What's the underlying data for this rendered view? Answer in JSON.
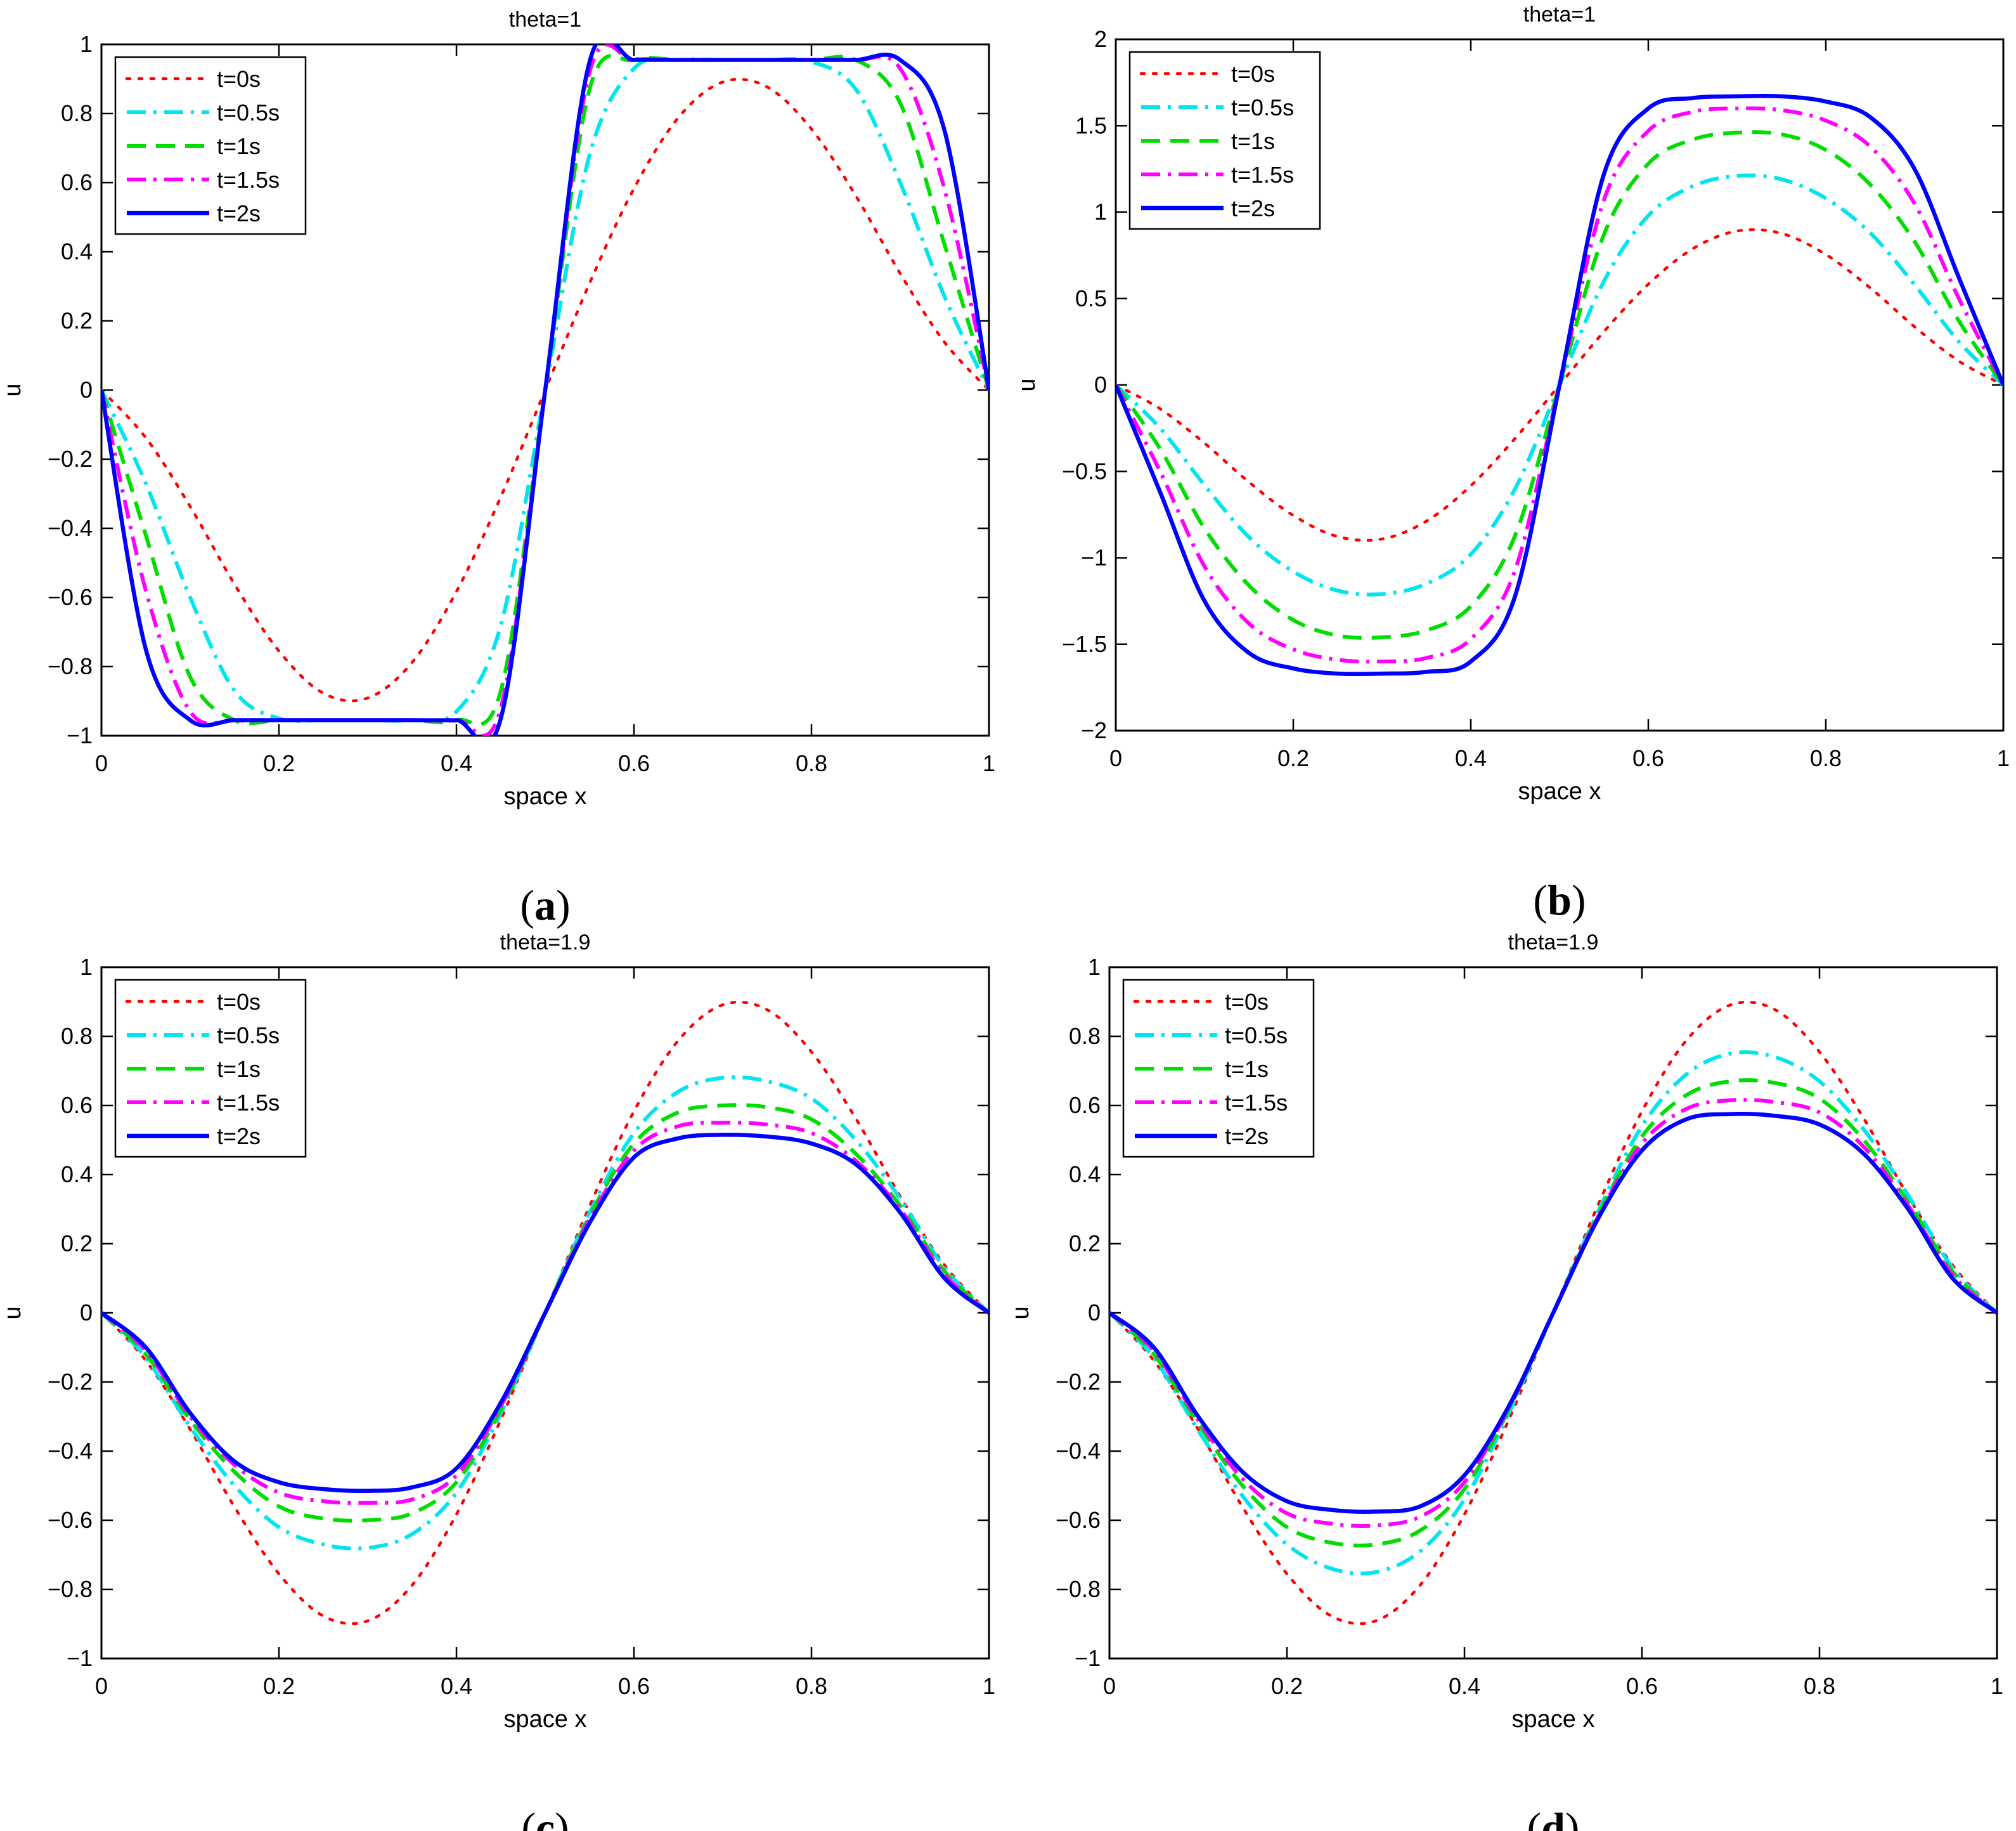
{
  "figure": {
    "panels": [
      "a",
      "b",
      "c",
      "d"
    ],
    "captions": [
      "(a)",
      "(b)",
      "(c)",
      "(d)"
    ]
  },
  "legend_entries": [
    {
      "label": "t=0s",
      "color": "#ff0000",
      "dash": "dotted"
    },
    {
      "label": "t=0.5s",
      "color": "#00e5ee",
      "dash": "dashdot"
    },
    {
      "label": "t=1s",
      "color": "#00dd00",
      "dash": "dashed"
    },
    {
      "label": "t=1.5s",
      "color": "#ff00ff",
      "dash": "dashdot"
    },
    {
      "label": "t=2s",
      "color": "#0000ff",
      "dash": "solid"
    }
  ],
  "chart_data": [
    {
      "type": "line",
      "panel": "a",
      "caption_letter": "a",
      "title": "theta=1",
      "xlabel": "space x",
      "ylabel": "u",
      "xlim": [
        0,
        1
      ],
      "ylim": [
        -1,
        1
      ],
      "xticks": [
        0,
        0.2,
        0.4,
        0.6,
        0.8,
        1
      ],
      "xtick_labels": [
        "0",
        "0.2",
        "0.4",
        "0.6",
        "0.8",
        "1"
      ],
      "yticks": [
        -1,
        -0.8,
        -0.6,
        -0.4,
        -0.2,
        0,
        0.2,
        0.4,
        0.6,
        0.8,
        1
      ],
      "ytick_labels": [
        "−1",
        "−0.8",
        "−0.6",
        "−0.4",
        "−0.2",
        "0",
        "0.2",
        "0.4",
        "0.6",
        "0.8",
        "1"
      ],
      "legend_position": "top-left",
      "x": [
        0,
        0.05,
        0.1,
        0.15,
        0.2,
        0.25,
        0.3,
        0.35,
        0.4,
        0.45,
        0.5,
        0.55,
        0.6,
        0.65,
        0.7,
        0.75,
        0.8,
        0.85,
        0.9,
        0.95,
        1
      ],
      "series": [
        {
          "name": "t=0s",
          "values": [
            0,
            -0.138,
            -0.337,
            -0.562,
            -0.755,
            -0.877,
            -0.891,
            -0.788,
            -0.583,
            -0.309,
            0,
            0.309,
            0.583,
            0.788,
            0.891,
            0.877,
            0.755,
            0.562,
            0.337,
            0.138,
            0
          ]
        },
        {
          "name": "t=0.5s",
          "values": [
            0,
            -0.27,
            -0.6,
            -0.87,
            -0.95,
            -0.955,
            -0.955,
            -0.955,
            -0.93,
            -0.68,
            0,
            0.68,
            0.93,
            0.955,
            0.955,
            0.955,
            0.95,
            0.87,
            0.6,
            0.27,
            0
          ]
        },
        {
          "name": "t=1s",
          "values": [
            0,
            -0.42,
            -0.83,
            -0.955,
            -0.955,
            -0.955,
            -0.955,
            -0.955,
            -0.955,
            -0.87,
            0,
            0.87,
            0.955,
            0.955,
            0.955,
            0.955,
            0.955,
            0.955,
            0.83,
            0.42,
            0
          ]
        },
        {
          "name": "t=1.5s",
          "values": [
            0,
            -0.58,
            -0.93,
            -0.955,
            -0.955,
            -0.955,
            -0.955,
            -0.955,
            -0.955,
            -0.92,
            0,
            0.92,
            0.955,
            0.955,
            0.955,
            0.955,
            0.955,
            0.955,
            0.93,
            0.58,
            0
          ]
        },
        {
          "name": "t=2s",
          "values": [
            0,
            -0.75,
            -0.955,
            -0.955,
            -0.955,
            -0.955,
            -0.955,
            -0.955,
            -0.955,
            -0.95,
            0,
            0.95,
            0.955,
            0.955,
            0.955,
            0.955,
            0.955,
            0.955,
            0.955,
            0.75,
            0
          ]
        }
      ]
    },
    {
      "type": "line",
      "panel": "b",
      "caption_letter": "b",
      "title": "theta=1",
      "xlabel": "space x",
      "ylabel": "u",
      "xlim": [
        0,
        1
      ],
      "ylim": [
        -2,
        2
      ],
      "xticks": [
        0,
        0.2,
        0.4,
        0.6,
        0.8,
        1
      ],
      "xtick_labels": [
        "0",
        "0.2",
        "0.4",
        "0.6",
        "0.8",
        "1"
      ],
      "yticks": [
        -2,
        -1.5,
        -1,
        -0.5,
        0,
        0.5,
        1,
        1.5,
        2
      ],
      "ytick_labels": [
        "−2",
        "−1.5",
        "−1",
        "−0.5",
        "0",
        "0.5",
        "1",
        "1.5",
        "2"
      ],
      "legend_position": "top-left",
      "x": [
        0,
        0.05,
        0.1,
        0.15,
        0.2,
        0.25,
        0.3,
        0.35,
        0.4,
        0.45,
        0.5,
        0.55,
        0.6,
        0.65,
        0.7,
        0.75,
        0.8,
        0.85,
        0.9,
        0.95,
        1
      ],
      "series": [
        {
          "name": "t=0s",
          "values": [
            0,
            -0.138,
            -0.337,
            -0.562,
            -0.755,
            -0.877,
            -0.891,
            -0.788,
            -0.583,
            -0.309,
            0,
            0.309,
            0.583,
            0.788,
            0.891,
            0.877,
            0.755,
            0.562,
            0.337,
            0.138,
            0
          ]
        },
        {
          "name": "t=0.5s",
          "values": [
            0,
            -0.25,
            -0.58,
            -0.88,
            -1.08,
            -1.19,
            -1.21,
            -1.15,
            -0.98,
            -0.6,
            0,
            0.6,
            0.98,
            1.15,
            1.21,
            1.19,
            1.08,
            0.88,
            0.58,
            0.25,
            0
          ]
        },
        {
          "name": "t=1s",
          "values": [
            0,
            -0.37,
            -0.83,
            -1.16,
            -1.36,
            -1.45,
            -1.46,
            -1.42,
            -1.28,
            -0.87,
            0,
            0.87,
            1.28,
            1.42,
            1.46,
            1.45,
            1.36,
            1.16,
            0.83,
            0.37,
            0
          ]
        },
        {
          "name": "t=1.5s",
          "values": [
            0,
            -0.5,
            -1.05,
            -1.38,
            -1.53,
            -1.59,
            -1.6,
            -1.58,
            -1.47,
            -1.07,
            0,
            1.07,
            1.47,
            1.58,
            1.6,
            1.59,
            1.53,
            1.38,
            1.05,
            0.5,
            0
          ]
        },
        {
          "name": "t=2s",
          "values": [
            0,
            -0.62,
            -1.25,
            -1.55,
            -1.64,
            -1.67,
            -1.67,
            -1.66,
            -1.6,
            -1.22,
            0,
            1.22,
            1.6,
            1.66,
            1.67,
            1.67,
            1.64,
            1.55,
            1.25,
            0.62,
            0
          ]
        }
      ]
    },
    {
      "type": "line",
      "panel": "c",
      "caption_letter": "c",
      "title": "theta=1.9",
      "xlabel": "space x",
      "ylabel": "u",
      "xlim": [
        0,
        1
      ],
      "ylim": [
        -1,
        1
      ],
      "xticks": [
        0,
        0.2,
        0.4,
        0.6,
        0.8,
        1
      ],
      "xtick_labels": [
        "0",
        "0.2",
        "0.4",
        "0.6",
        "0.8",
        "1"
      ],
      "yticks": [
        -1,
        -0.8,
        -0.6,
        -0.4,
        -0.2,
        0,
        0.2,
        0.4,
        0.6,
        0.8,
        1
      ],
      "ytick_labels": [
        "−1",
        "−0.8",
        "−0.6",
        "−0.4",
        "−0.2",
        "0",
        "0.2",
        "0.4",
        "0.6",
        "0.8",
        "1"
      ],
      "legend_position": "top-left",
      "x": [
        0,
        0.05,
        0.1,
        0.15,
        0.2,
        0.25,
        0.3,
        0.35,
        0.4,
        0.45,
        0.5,
        0.55,
        0.6,
        0.65,
        0.7,
        0.75,
        0.8,
        0.85,
        0.9,
        0.95,
        1
      ],
      "series": [
        {
          "name": "t=0s",
          "values": [
            0,
            -0.138,
            -0.337,
            -0.562,
            -0.755,
            -0.877,
            -0.891,
            -0.788,
            -0.583,
            -0.309,
            0,
            0.309,
            0.583,
            0.788,
            0.891,
            0.877,
            0.755,
            0.562,
            0.337,
            0.138,
            0
          ]
        },
        {
          "name": "t=0.5s",
          "values": [
            0,
            -0.13,
            -0.33,
            -0.5,
            -0.62,
            -0.67,
            -0.68,
            -0.64,
            -0.52,
            -0.29,
            0,
            0.29,
            0.52,
            0.64,
            0.68,
            0.67,
            0.62,
            0.5,
            0.33,
            0.13,
            0
          ]
        },
        {
          "name": "t=1s",
          "values": [
            0,
            -0.12,
            -0.31,
            -0.46,
            -0.56,
            -0.595,
            -0.6,
            -0.58,
            -0.49,
            -0.28,
            0,
            0.28,
            0.49,
            0.58,
            0.6,
            0.595,
            0.56,
            0.46,
            0.31,
            0.12,
            0
          ]
        },
        {
          "name": "t=1.5s",
          "values": [
            0,
            -0.11,
            -0.3,
            -0.44,
            -0.52,
            -0.545,
            -0.55,
            -0.54,
            -0.47,
            -0.27,
            0,
            0.27,
            0.47,
            0.54,
            0.55,
            0.545,
            0.52,
            0.44,
            0.3,
            0.11,
            0
          ]
        },
        {
          "name": "t=2s",
          "values": [
            0,
            -0.1,
            -0.29,
            -0.43,
            -0.49,
            -0.51,
            -0.515,
            -0.505,
            -0.45,
            -0.26,
            0,
            0.26,
            0.45,
            0.505,
            0.515,
            0.51,
            0.49,
            0.43,
            0.29,
            0.1,
            0
          ]
        }
      ]
    },
    {
      "type": "line",
      "panel": "d",
      "caption_letter": "d",
      "title": "theta=1.9",
      "xlabel": "space x",
      "ylabel": "u",
      "xlim": [
        0,
        1
      ],
      "ylim": [
        -1,
        1
      ],
      "xticks": [
        0,
        0.2,
        0.4,
        0.6,
        0.8,
        1
      ],
      "xtick_labels": [
        "0",
        "0.2",
        "0.4",
        "0.6",
        "0.8",
        "1"
      ],
      "yticks": [
        -1,
        -0.8,
        -0.6,
        -0.4,
        -0.2,
        0,
        0.2,
        0.4,
        0.6,
        0.8,
        1
      ],
      "ytick_labels": [
        "−1",
        "−0.8",
        "−0.6",
        "−0.4",
        "−0.2",
        "0",
        "0.2",
        "0.4",
        "0.6",
        "0.8",
        "1"
      ],
      "legend_position": "top-left",
      "x": [
        0,
        0.05,
        0.1,
        0.15,
        0.2,
        0.25,
        0.3,
        0.35,
        0.4,
        0.45,
        0.5,
        0.55,
        0.6,
        0.65,
        0.7,
        0.75,
        0.8,
        0.85,
        0.9,
        0.95,
        1
      ],
      "series": [
        {
          "name": "t=0s",
          "values": [
            0,
            -0.138,
            -0.337,
            -0.562,
            -0.755,
            -0.877,
            -0.891,
            -0.788,
            -0.583,
            -0.309,
            0,
            0.309,
            0.583,
            0.788,
            0.891,
            0.877,
            0.755,
            0.562,
            0.337,
            0.138,
            0
          ]
        },
        {
          "name": "t=0.5s",
          "values": [
            0,
            -0.13,
            -0.34,
            -0.53,
            -0.67,
            -0.74,
            -0.75,
            -0.69,
            -0.54,
            -0.29,
            0,
            0.29,
            0.54,
            0.69,
            0.75,
            0.74,
            0.67,
            0.53,
            0.34,
            0.13,
            0
          ]
        },
        {
          "name": "t=1s",
          "values": [
            0,
            -0.12,
            -0.32,
            -0.5,
            -0.62,
            -0.665,
            -0.67,
            -0.63,
            -0.51,
            -0.28,
            0,
            0.28,
            0.51,
            0.63,
            0.67,
            0.665,
            0.62,
            0.5,
            0.32,
            0.12,
            0
          ]
        },
        {
          "name": "t=1.5s",
          "values": [
            0,
            -0.11,
            -0.31,
            -0.48,
            -0.58,
            -0.61,
            -0.615,
            -0.59,
            -0.49,
            -0.275,
            0,
            0.275,
            0.49,
            0.59,
            0.615,
            0.61,
            0.58,
            0.48,
            0.31,
            0.11,
            0
          ]
        },
        {
          "name": "t=2s",
          "values": [
            0,
            -0.1,
            -0.3,
            -0.46,
            -0.545,
            -0.57,
            -0.575,
            -0.56,
            -0.47,
            -0.27,
            0,
            0.27,
            0.47,
            0.56,
            0.575,
            0.57,
            0.545,
            0.46,
            0.3,
            0.1,
            0
          ]
        }
      ]
    }
  ]
}
